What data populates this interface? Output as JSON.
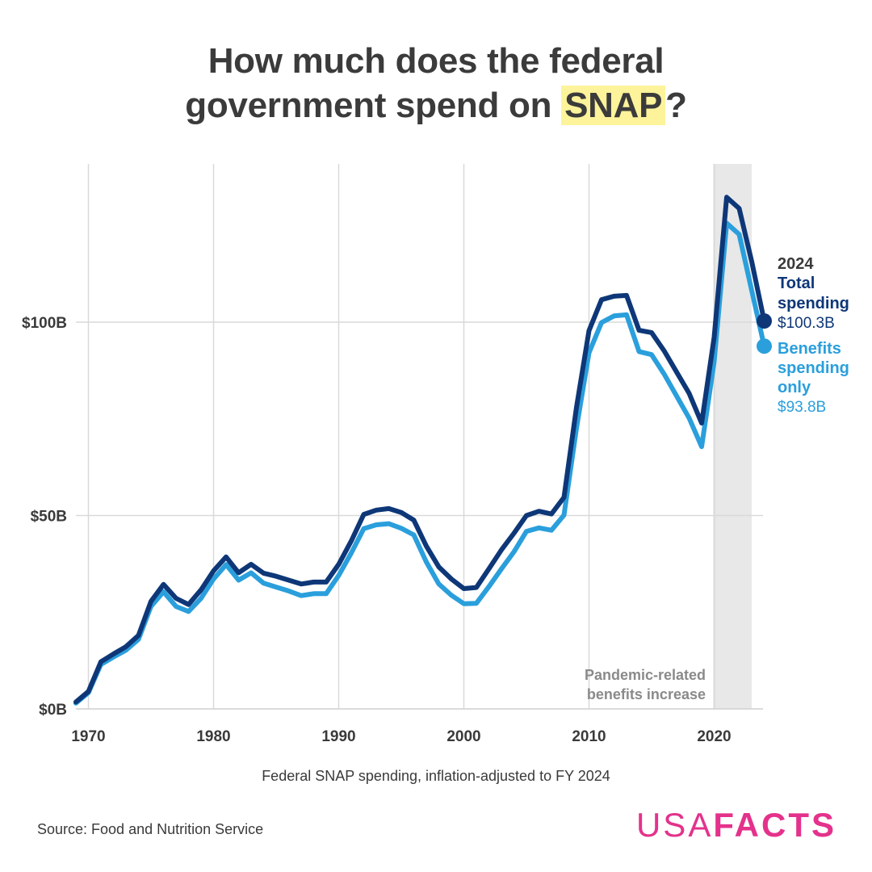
{
  "header": {
    "title_line1": "How much does the federal",
    "title_line2_pre": "government spend on ",
    "title_highlight": "SNAP",
    "title_line2_post": "?"
  },
  "footer": {
    "subtitle": "Federal SNAP spending, inflation-adjusted to FY 2024",
    "source": "Source: Food and Nutrition Service",
    "logo_light": "USA",
    "logo_bold": "FACTS"
  },
  "colors": {
    "total": "#0e3778",
    "benefits": "#2a9fdc",
    "highlight": "#fdf39a",
    "shade": "#e8e8e8",
    "grid": "#d9d9d9",
    "logo": "#e4328c"
  },
  "chart_data": {
    "type": "line",
    "title": "How much does the federal government spend on SNAP?",
    "xlabel": "",
    "ylabel": "",
    "xlim": [
      1969,
      2024
    ],
    "ylim": [
      0,
      140
    ],
    "x_ticks": [
      1970,
      1980,
      1990,
      2000,
      2010,
      2020
    ],
    "y_ticks": [
      0,
      50,
      100
    ],
    "y_tick_labels": [
      "$0B",
      "$50B",
      "$100B"
    ],
    "x": [
      1969,
      1970,
      1971,
      1972,
      1973,
      1974,
      1975,
      1976,
      1977,
      1978,
      1979,
      1980,
      1981,
      1982,
      1983,
      1984,
      1985,
      1986,
      1987,
      1988,
      1989,
      1990,
      1991,
      1992,
      1993,
      1994,
      1995,
      1996,
      1997,
      1998,
      1999,
      2000,
      2001,
      2002,
      2003,
      2004,
      2005,
      2006,
      2007,
      2008,
      2009,
      2010,
      2011,
      2012,
      2013,
      2014,
      2015,
      2016,
      2017,
      2018,
      2019,
      2020,
      2021,
      2022,
      2023,
      2024
    ],
    "series": [
      {
        "name": "Total spending",
        "values": [
          1.8,
          4.5,
          12.2,
          14.2,
          16.1,
          19.0,
          27.8,
          32.2,
          28.6,
          27.0,
          30.8,
          35.7,
          39.3,
          35.2,
          37.4,
          35.1,
          34.3,
          33.3,
          32.3,
          32.8,
          32.8,
          37.4,
          43.4,
          50.3,
          51.4,
          51.8,
          50.8,
          48.8,
          42.1,
          36.7,
          33.6,
          31.1,
          31.4,
          36.2,
          41.1,
          45.4,
          50.0,
          51.1,
          50.4,
          54.7,
          78.0,
          97.8,
          105.8,
          106.7,
          106.9,
          97.9,
          97.3,
          92.6,
          87.1,
          81.6,
          73.9,
          96.1,
          132.3,
          129.4,
          115.7,
          100.3
        ]
      },
      {
        "name": "Benefits spending only",
        "values": [
          1.5,
          4.2,
          11.5,
          13.4,
          15.2,
          18.0,
          26.5,
          30.3,
          26.5,
          25.2,
          28.6,
          33.6,
          37.3,
          33.3,
          35.2,
          32.5,
          31.5,
          30.5,
          29.3,
          29.8,
          29.8,
          34.5,
          40.3,
          46.6,
          47.6,
          47.9,
          46.7,
          45.0,
          38.0,
          32.3,
          29.4,
          27.2,
          27.3,
          31.6,
          36.2,
          40.6,
          45.9,
          46.8,
          46.2,
          50.1,
          72.6,
          92.1,
          99.9,
          101.6,
          101.9,
          92.4,
          91.6,
          86.6,
          80.9,
          75.2,
          67.8,
          89.8,
          125.6,
          122.7,
          108.2,
          93.8
        ]
      }
    ],
    "shaded_region": {
      "from": 2020,
      "to": 2023,
      "label_line1": "Pandemic-related",
      "label_line2": "benefits increase"
    },
    "end_label": {
      "year": "2024",
      "total_label_line1": "Total",
      "total_label_line2": "spending",
      "total_value": "$100.3B",
      "benefits_label_line1": "Benefits",
      "benefits_label_line2": "spending",
      "benefits_label_line3": "only",
      "benefits_value": "$93.8B"
    }
  }
}
